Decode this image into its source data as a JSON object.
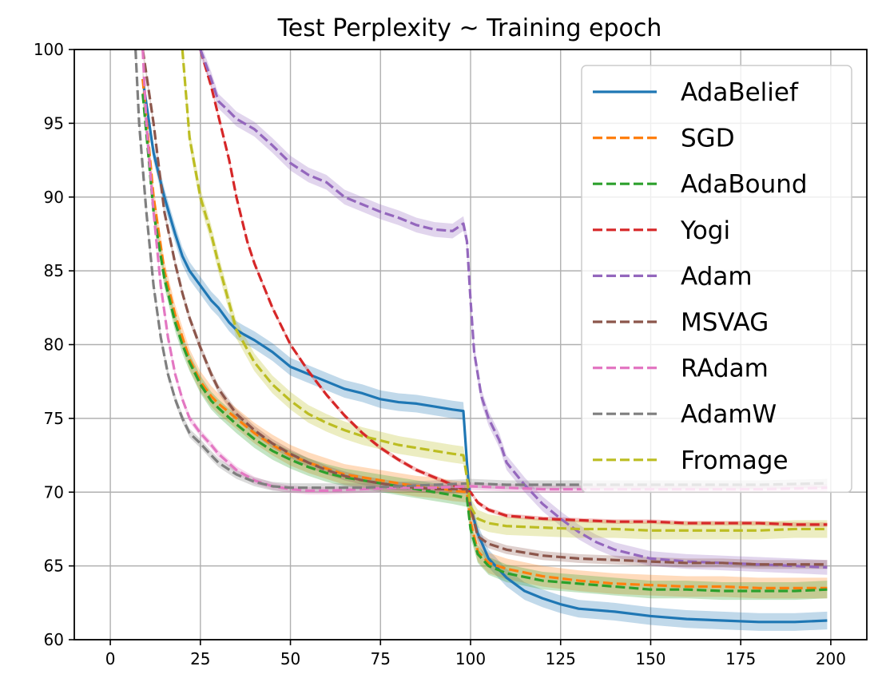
{
  "chart_data": {
    "type": "line",
    "title": "Test Perplexity ~ Training epoch",
    "xlabel": "",
    "ylabel": "",
    "xlim": [
      -10,
      210
    ],
    "ylim": [
      60,
      100
    ],
    "xticks": [
      0,
      25,
      50,
      75,
      100,
      125,
      150,
      175,
      200
    ],
    "yticks": [
      60,
      65,
      70,
      75,
      80,
      85,
      90,
      95,
      100
    ],
    "grid": true,
    "legend_position": "top-right",
    "series": [
      {
        "name": "AdaBelief",
        "color": "#1f77b4",
        "style": "solid",
        "x": [
          9,
          12,
          15,
          18,
          20,
          22,
          25,
          28,
          30,
          33,
          35,
          37,
          40,
          45,
          50,
          55,
          60,
          65,
          70,
          75,
          80,
          85,
          90,
          95,
          98,
          99,
          100,
          102,
          105,
          110,
          115,
          120,
          125,
          130,
          140,
          150,
          160,
          170,
          180,
          190,
          199
        ],
        "y": [
          98,
          93,
          90,
          87.5,
          86,
          85,
          84,
          83,
          82.5,
          81.5,
          81,
          80.7,
          80.3,
          79.5,
          78.5,
          78,
          77.5,
          77,
          76.7,
          76.3,
          76.1,
          76,
          75.8,
          75.6,
          75.5,
          72,
          69,
          67.2,
          65.5,
          64.2,
          63.3,
          62.8,
          62.4,
          62.1,
          61.9,
          61.6,
          61.4,
          61.3,
          61.2,
          61.2,
          61.3
        ],
        "band": 0.6
      },
      {
        "name": "SGD",
        "color": "#ff7f0e",
        "style": "dashed",
        "x": [
          9,
          12,
          15,
          18,
          20,
          22,
          25,
          28,
          30,
          35,
          40,
          45,
          50,
          55,
          60,
          65,
          70,
          75,
          80,
          85,
          90,
          95,
          99,
          100,
          102,
          105,
          110,
          120,
          130,
          140,
          150,
          160,
          170,
          180,
          190,
          199
        ],
        "y": [
          98,
          90,
          85,
          82,
          80.5,
          79,
          77.5,
          76.5,
          76,
          75,
          74,
          73.2,
          72.5,
          72,
          71.6,
          71.2,
          71,
          70.8,
          70.6,
          70.4,
          70.3,
          70.1,
          70,
          68,
          66,
          65.2,
          64.8,
          64.3,
          64,
          63.8,
          63.7,
          63.6,
          63.6,
          63.5,
          63.5,
          63.5
        ],
        "band": 0.7
      },
      {
        "name": "AdaBound",
        "color": "#2ca02c",
        "style": "dashed",
        "x": [
          9,
          12,
          15,
          18,
          20,
          22,
          25,
          28,
          30,
          35,
          40,
          45,
          50,
          55,
          60,
          65,
          70,
          75,
          80,
          85,
          90,
          95,
          99,
          100,
          102,
          105,
          110,
          120,
          130,
          140,
          150,
          160,
          170,
          180,
          190,
          199
        ],
        "y": [
          97,
          89,
          84.5,
          81.5,
          80,
          78.8,
          77.3,
          76.2,
          75.7,
          74.6,
          73.6,
          72.8,
          72.2,
          71.7,
          71.3,
          71,
          70.8,
          70.6,
          70.4,
          70.2,
          70,
          69.8,
          69.6,
          67.5,
          65.8,
          65,
          64.5,
          64,
          63.8,
          63.6,
          63.4,
          63.4,
          63.3,
          63.3,
          63.3,
          63.4
        ],
        "band": 0.6
      },
      {
        "name": "Yogi",
        "color": "#d62728",
        "style": "dashed",
        "x": [
          25,
          28,
          30,
          33,
          35,
          38,
          40,
          45,
          50,
          55,
          60,
          65,
          70,
          75,
          80,
          85,
          90,
          95,
          100,
          102,
          105,
          110,
          120,
          130,
          140,
          150,
          160,
          170,
          180,
          190,
          199
        ],
        "y": [
          100,
          97.5,
          95.5,
          92.5,
          90,
          87,
          85.5,
          82.5,
          80,
          78.2,
          76.6,
          75.2,
          74,
          73,
          72.2,
          71.5,
          71,
          70.5,
          70,
          69.3,
          68.8,
          68.4,
          68.2,
          68.1,
          68,
          68,
          67.9,
          67.9,
          67.9,
          67.8,
          67.8
        ],
        "band": 0.15
      },
      {
        "name": "Adam",
        "color": "#9467bd",
        "style": "dashed",
        "x": [
          25,
          28,
          30,
          33,
          35,
          40,
          45,
          50,
          55,
          60,
          65,
          70,
          75,
          80,
          85,
          90,
          95,
          98,
          99,
          100,
          101,
          103,
          105,
          108,
          110,
          115,
          120,
          125,
          130,
          135,
          140,
          145,
          150,
          160,
          170,
          180,
          190,
          199
        ],
        "y": [
          100,
          98,
          96.5,
          95.8,
          95.3,
          94.6,
          93.5,
          92.3,
          91.5,
          91,
          90,
          89.5,
          89,
          88.6,
          88.1,
          87.8,
          87.7,
          88.2,
          87,
          83,
          79.5,
          76.5,
          75,
          73.5,
          72,
          70.5,
          69.2,
          68.2,
          67.3,
          66.6,
          66.1,
          65.8,
          65.5,
          65.3,
          65.2,
          65.1,
          65,
          64.9
        ],
        "band": 0.5
      },
      {
        "name": "MSVAG",
        "color": "#8c564b",
        "style": "dashed",
        "x": [
          9,
          12,
          15,
          18,
          20,
          22,
          25,
          28,
          30,
          35,
          40,
          45,
          50,
          55,
          60,
          65,
          70,
          75,
          80,
          85,
          90,
          95,
          99,
          100,
          102,
          105,
          110,
          120,
          130,
          140,
          150,
          160,
          170,
          180,
          190,
          199
        ],
        "y": [
          100,
          95,
          89,
          85.5,
          83.5,
          81.8,
          79.8,
          78,
          77,
          75.3,
          74.2,
          73.3,
          72.6,
          72,
          71.5,
          71.1,
          70.8,
          70.6,
          70.4,
          70.3,
          70.2,
          70.2,
          70.2,
          69,
          67,
          66.5,
          66.1,
          65.7,
          65.5,
          65.4,
          65.3,
          65.2,
          65.2,
          65.1,
          65.1,
          65.1
        ],
        "band": 0.3
      },
      {
        "name": "RAdam",
        "color": "#e377c2",
        "style": "dashed",
        "x": [
          9,
          10,
          12,
          14,
          16,
          18,
          20,
          22,
          25,
          28,
          30,
          35,
          40,
          45,
          50,
          55,
          60,
          70,
          80,
          90,
          100,
          110,
          120,
          140,
          160,
          180,
          199
        ],
        "y": [
          100,
          95,
          89,
          84,
          80.5,
          78,
          76.3,
          75,
          74,
          73.2,
          72.6,
          71.5,
          70.8,
          70.4,
          70.2,
          70.1,
          70.1,
          70.2,
          70.3,
          70.3,
          70.4,
          70.3,
          70.2,
          70.2,
          70.2,
          70.2,
          70.3
        ],
        "band": 0.25
      },
      {
        "name": "AdamW",
        "color": "#7f7f7f",
        "style": "dashed",
        "x": [
          7,
          8,
          10,
          12,
          14,
          16,
          18,
          20,
          22,
          25,
          28,
          30,
          35,
          40,
          45,
          50,
          55,
          60,
          70,
          80,
          90,
          100,
          110,
          120,
          140,
          160,
          180,
          199
        ],
        "y": [
          100,
          95,
          89,
          84,
          80.5,
          78,
          76.3,
          75,
          74,
          73.3,
          72.5,
          72,
          71.2,
          70.7,
          70.4,
          70.3,
          70.3,
          70.3,
          70.3,
          70.4,
          70.5,
          70.6,
          70.5,
          70.5,
          70.5,
          70.5,
          70.5,
          70.6
        ],
        "band": 0.3
      },
      {
        "name": "Fromage",
        "color": "#bcbd22",
        "style": "dashed",
        "x": [
          20,
          22,
          25,
          28,
          30,
          35,
          40,
          45,
          50,
          55,
          60,
          65,
          70,
          75,
          80,
          85,
          90,
          95,
          98,
          99,
          100,
          102,
          105,
          110,
          120,
          130,
          140,
          150,
          160,
          170,
          180,
          190,
          199
        ],
        "y": [
          100,
          94,
          90,
          87.5,
          85.5,
          81,
          78.8,
          77.3,
          76.2,
          75.3,
          74.7,
          74.2,
          73.8,
          73.5,
          73.2,
          73,
          72.8,
          72.6,
          72.5,
          71,
          69,
          68.2,
          67.9,
          67.7,
          67.6,
          67.5,
          67.5,
          67.4,
          67.4,
          67.4,
          67.4,
          67.5,
          67.5
        ],
        "band": 0.6
      }
    ]
  }
}
